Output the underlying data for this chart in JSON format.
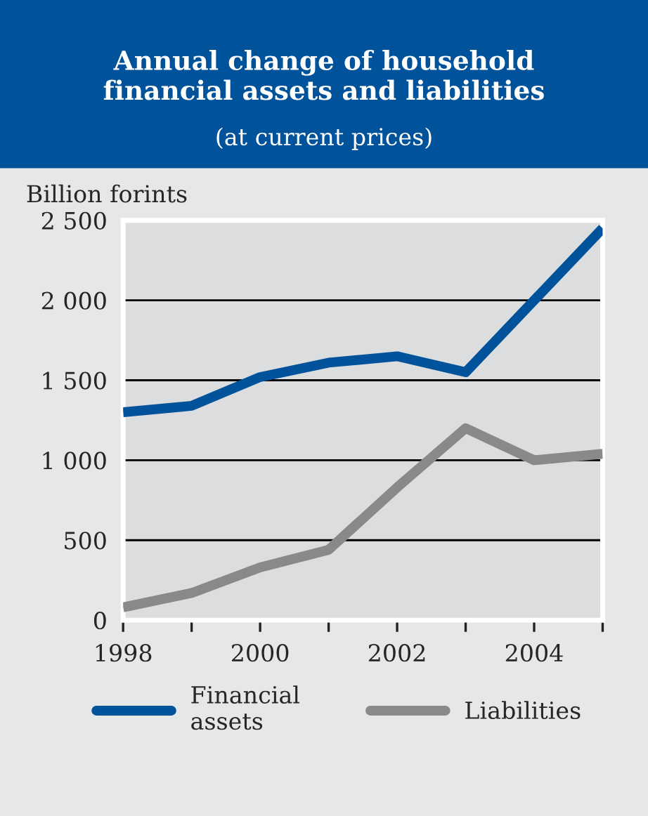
{
  "chart_data": {
    "type": "line",
    "title": "Annual change of household\nfinancial assets and liabilities",
    "subtitle": "(at current prices)",
    "ylabel": "Billion forints",
    "x": [
      1998,
      1999,
      2000,
      2001,
      2002,
      2003,
      2004,
      2005
    ],
    "series": [
      {
        "name": "Financial\nassets",
        "color": "#00539b",
        "values": [
          1300,
          1340,
          1520,
          1610,
          1650,
          1550,
          2000,
          2450
        ]
      },
      {
        "name": "Liabilities",
        "color": "#88898b",
        "values": [
          80,
          170,
          330,
          440,
          830,
          1200,
          1000,
          1040
        ]
      }
    ],
    "xlim": [
      1998,
      2005
    ],
    "xticks": [
      1998,
      {
        "value": 1999,
        "label": null
      },
      2000,
      {
        "value": 2001,
        "label": null
      },
      2002,
      {
        "value": 2003,
        "label": null
      },
      2004,
      {
        "value": 2005,
        "label": null
      }
    ],
    "ylim": [
      0,
      2500
    ],
    "yticks": [
      0,
      {
        "value": 500,
        "label": "500"
      },
      {
        "value": 1000,
        "label": "1 000"
      },
      {
        "value": 1500,
        "label": "1 500"
      },
      {
        "value": 2000,
        "label": "2 000"
      },
      {
        "value": 2500,
        "label": "2 500"
      }
    ],
    "grid": "y",
    "legend": "bottom",
    "marker": "none",
    "line_style": "solid"
  }
}
